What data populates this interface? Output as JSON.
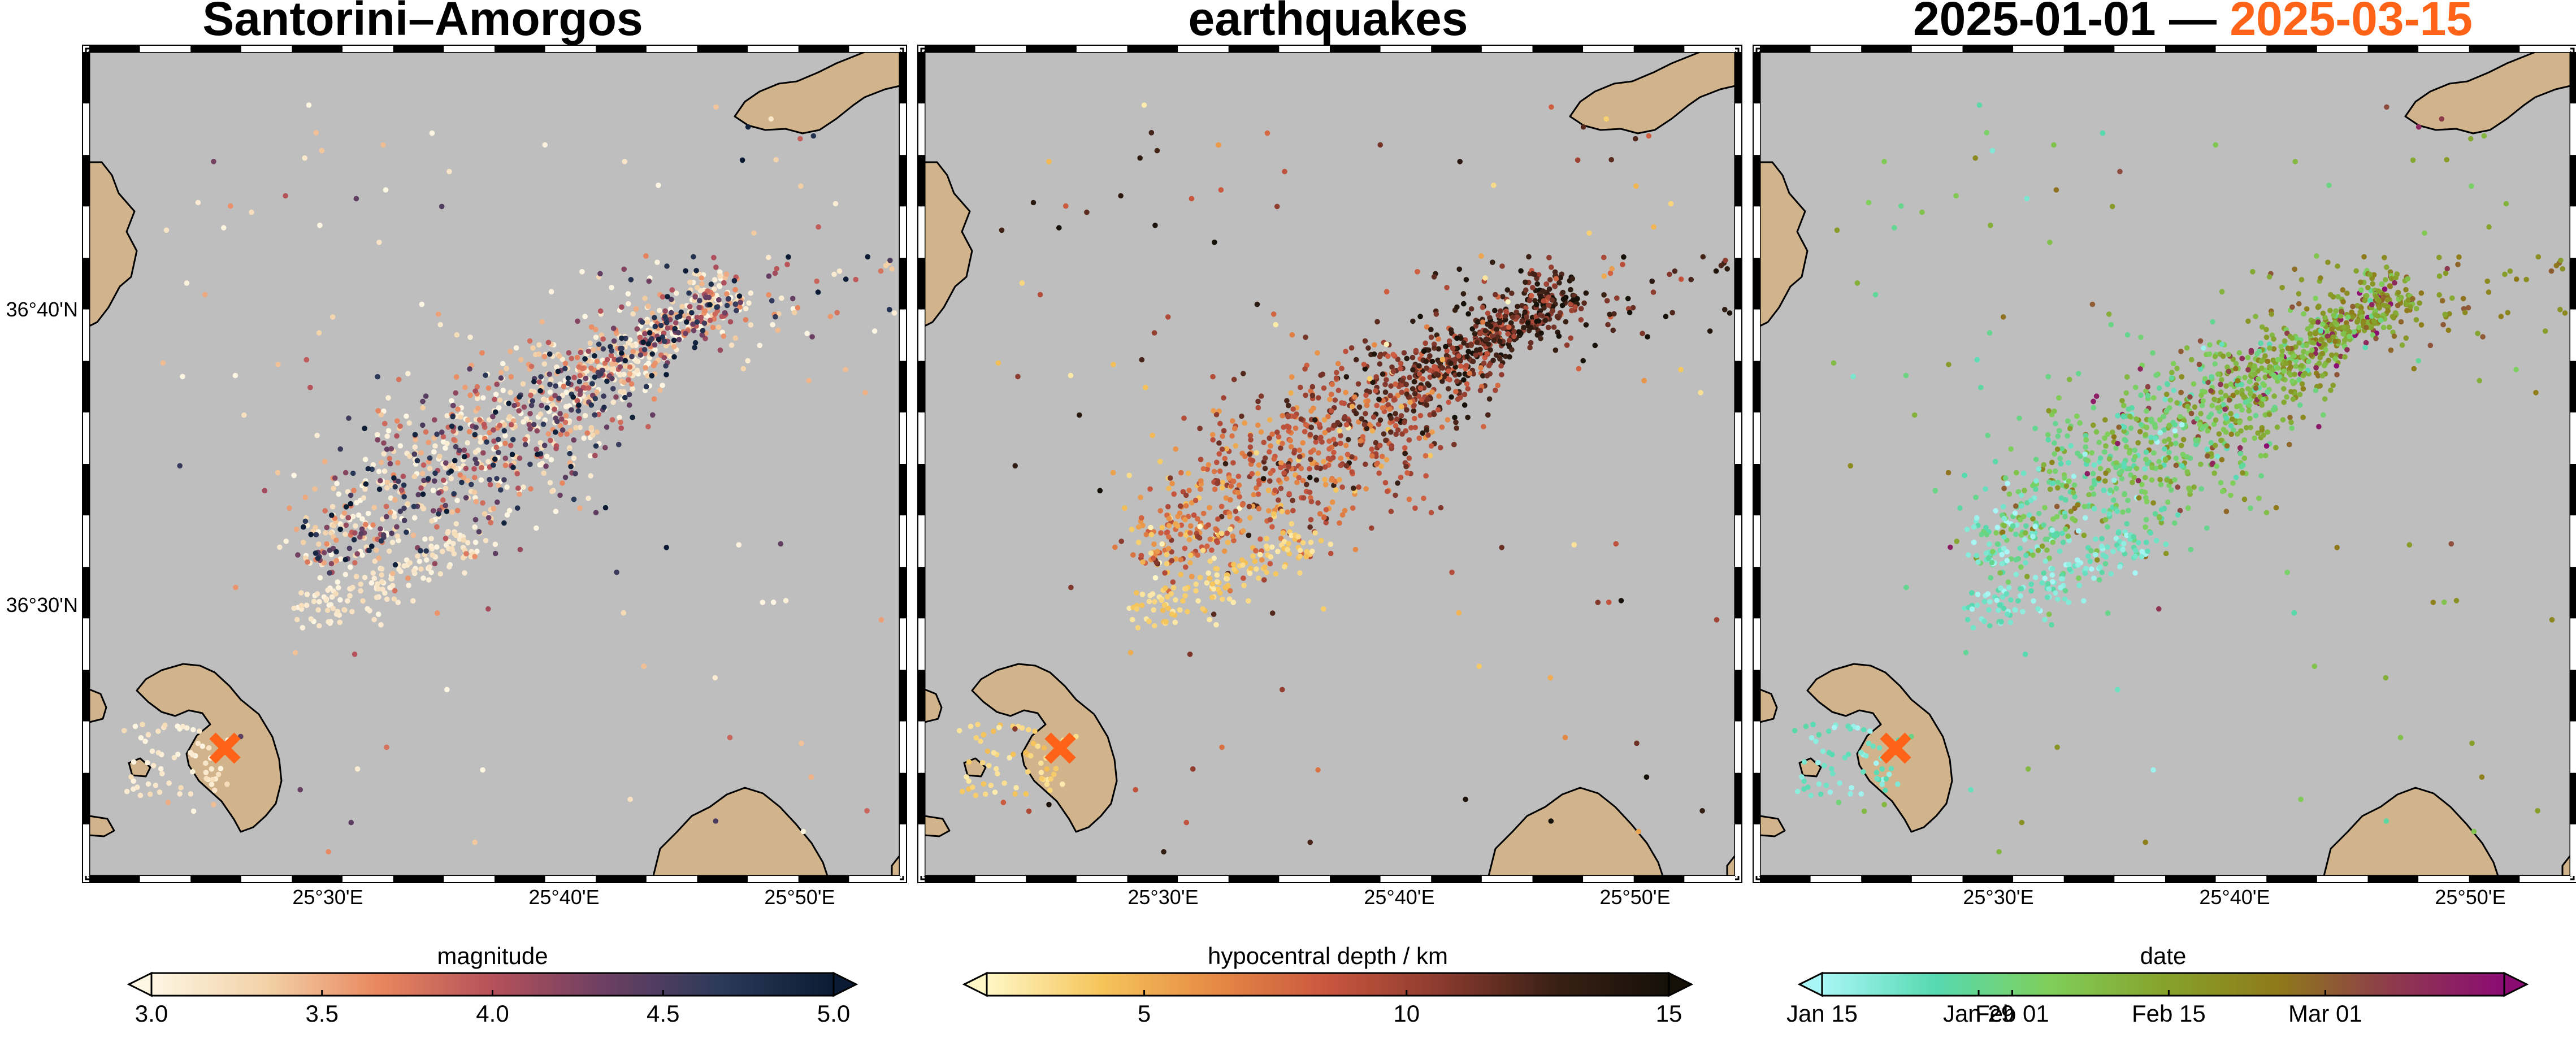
{
  "panels": [
    {
      "title": "Santorini–Amorgos",
      "colorbar": {
        "label": "magnitude",
        "ticks": [
          "3.0",
          "3.5",
          "4.0",
          "4.5",
          "5.0"
        ],
        "tick_values": [
          3.0,
          3.5,
          4.0,
          4.5,
          5.0
        ],
        "range": [
          3.0,
          5.0
        ],
        "colors": [
          "#fdf6e3",
          "#f3d2a8",
          "#e9875f",
          "#b5515a",
          "#6b3f63",
          "#2c3a5a",
          "#0a1b33"
        ]
      },
      "lat_labels": [
        "36°40'N",
        "36°30'N"
      ],
      "lon_labels": [
        "25°30'E",
        "25°40'E",
        "25°50'E"
      ]
    },
    {
      "title": "earthquakes",
      "colorbar": {
        "label": "hypocentral depth / km",
        "ticks": [
          "5",
          "10",
          "15"
        ],
        "tick_values": [
          5,
          10,
          15
        ],
        "range": [
          2,
          15
        ],
        "colors": [
          "#fff7c6",
          "#f5c55a",
          "#e68a45",
          "#c9563f",
          "#8a3a2e",
          "#3a2015",
          "#151008"
        ]
      },
      "lon_labels": [
        "25°30'E",
        "25°40'E",
        "25°50'E"
      ]
    },
    {
      "title_start": "2025-01-01 —",
      "title_end": "2025-03-15",
      "title_end_color": "#ff6318",
      "colorbar": {
        "label": "date",
        "ticks": [
          "Jan 15",
          "Jan 29",
          "Feb 01",
          "Feb 15",
          "Mar 01"
        ],
        "tick_values": [
          0,
          14,
          17,
          31,
          45
        ],
        "range": [
          0,
          61
        ],
        "colors": [
          "#a8f6f6",
          "#56d9b0",
          "#7fcf5a",
          "#86a32c",
          "#8f7a1a",
          "#8e3b4c",
          "#8b0b73"
        ]
      },
      "lon_labels": [
        "25°30'E",
        "25°40'E",
        "25°50'E"
      ]
    }
  ],
  "map": {
    "sea_color": "#bebebe",
    "land_color": "#d2b48c",
    "marker_color": "#ff6318",
    "marker_icon": "x-cross-icon"
  }
}
